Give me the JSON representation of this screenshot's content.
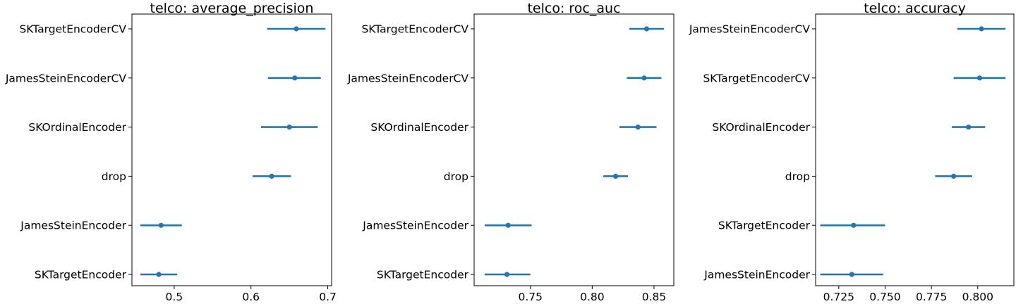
{
  "chart_data": [
    {
      "type": "errorbar",
      "title": "telco: average_precision",
      "xlabel": "",
      "ylabel": "",
      "xlim": [
        0.445,
        0.705
      ],
      "xticks": [
        0.5,
        0.6,
        0.7
      ],
      "xtick_labels": [
        "0.5",
        "0.6",
        "0.7"
      ],
      "color": "#1f77b4",
      "categories": [
        "SKTargetEncoderCV",
        "JamesSteinEncoderCV",
        "SKOrdinalEncoder",
        "drop",
        "JamesSteinEncoder",
        "SKTargetEncoder"
      ],
      "values": [
        0.659,
        0.657,
        0.65,
        0.627,
        0.483,
        0.48
      ],
      "lower": [
        0.621,
        0.622,
        0.613,
        0.602,
        0.456,
        0.456
      ],
      "upper": [
        0.697,
        0.691,
        0.687,
        0.652,
        0.51,
        0.504
      ]
    },
    {
      "type": "errorbar",
      "title": "telco: roc_auc",
      "xlabel": "",
      "ylabel": "",
      "xlim": [
        0.7045,
        0.866
      ],
      "xticks": [
        0.75,
        0.8,
        0.85
      ],
      "xtick_labels": [
        "0.75",
        "0.80",
        "0.85"
      ],
      "color": "#1f77b4",
      "categories": [
        "SKTargetEncoderCV",
        "JamesSteinEncoderCV",
        "SKOrdinalEncoder",
        "drop",
        "JamesSteinEncoder",
        "SKTargetEncoder"
      ],
      "values": [
        0.844,
        0.842,
        0.837,
        0.819,
        0.732,
        0.731
      ],
      "lower": [
        0.83,
        0.828,
        0.822,
        0.809,
        0.713,
        0.713
      ],
      "upper": [
        0.858,
        0.856,
        0.852,
        0.829,
        0.751,
        0.75
      ]
    },
    {
      "type": "errorbar",
      "title": "telco: accuracy",
      "xlabel": "",
      "ylabel": "",
      "xlim": [
        0.7125,
        0.8195
      ],
      "xticks": [
        0.725,
        0.75,
        0.775,
        0.8
      ],
      "xtick_labels": [
        "0.725",
        "0.750",
        "0.775",
        "0.800"
      ],
      "color": "#1f77b4",
      "categories": [
        "JamesSteinEncoderCV",
        "SKTargetEncoderCV",
        "SKOrdinalEncoder",
        "drop",
        "SKTargetEncoder",
        "JamesSteinEncoder"
      ],
      "values": [
        0.802,
        0.801,
        0.795,
        0.787,
        0.733,
        0.732
      ],
      "lower": [
        0.789,
        0.787,
        0.786,
        0.777,
        0.715,
        0.715
      ],
      "upper": [
        0.815,
        0.815,
        0.804,
        0.797,
        0.75,
        0.749
      ]
    }
  ]
}
